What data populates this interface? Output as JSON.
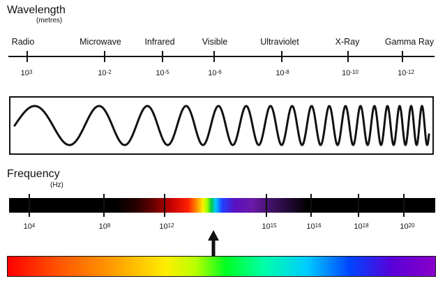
{
  "wavelength": {
    "title": "Wavelength",
    "unit": "(metres)",
    "bands": [
      "Radio",
      "Microwave",
      "Infrared",
      "Visible",
      "Ultraviolet",
      "X-Ray",
      "Gamma Ray"
    ],
    "ticks": [
      {
        "base": "10",
        "exp": "3"
      },
      {
        "base": "10",
        "exp": "-2"
      },
      {
        "base": "10",
        "exp": "-5"
      },
      {
        "base": "10",
        "exp": "-6"
      },
      {
        "base": "10",
        "exp": "-8"
      },
      {
        "base": "10",
        "exp": "-10"
      },
      {
        "base": "10",
        "exp": "-12"
      }
    ]
  },
  "frequency": {
    "title": "Frequency",
    "unit": "(Hz)",
    "ticks": [
      {
        "base": "10",
        "exp": "4"
      },
      {
        "base": "10",
        "exp": "8"
      },
      {
        "base": "10",
        "exp": "12"
      },
      {
        "base": "10",
        "exp": "15"
      },
      {
        "base": "10",
        "exp": "16"
      },
      {
        "base": "10",
        "exp": "18"
      },
      {
        "base": "10",
        "exp": "20"
      }
    ]
  },
  "colors": {
    "line": "#111111",
    "background": "#ffffff"
  },
  "icons": {
    "pointer": "up-arrow-icon"
  }
}
